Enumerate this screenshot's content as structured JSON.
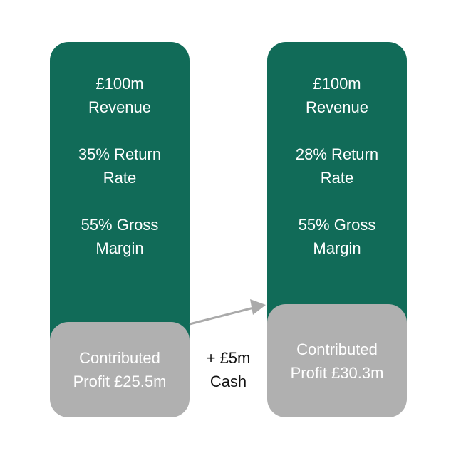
{
  "left_column": {
    "metrics": [
      "£100m Revenue",
      "35% Return Rate",
      "55% Gross Margin"
    ],
    "profit": "Contributed Profit £25.5m"
  },
  "right_column": {
    "metrics": [
      "£100m Revenue",
      "28% Return Rate",
      "55% Gross Margin"
    ],
    "profit": "Contributed Profit £30.3m"
  },
  "transition": {
    "label": "+ £5m Cash"
  },
  "colors": {
    "green": "#116b58",
    "grey": "#b0b0b0",
    "arrow": "#aaaaaa"
  }
}
